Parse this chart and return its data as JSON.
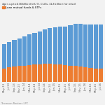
{
  "title": "dges up to $430 billion for U.S. CLOs, $112 billion for retail",
  "source": "Thomson Reuters LPC",
  "legend_label": "Loan mutual funds & ETFs",
  "bar_color_blue": "#5b9bd5",
  "bar_color_orange": "#ed7d31",
  "legend_color_orange": "#ed7d31",
  "background_color": "#f2f2f2",
  "plot_bg_color": "#f2f2f2",
  "x_labels": [
    "May-13",
    "Jul-13",
    "Sep-13",
    "Nov-13",
    "Jan-14",
    "Mar-14",
    "May-14",
    "Jul-14",
    "Sep-14",
    "Nov-14",
    "Jan-15",
    "Mar-15",
    "May-15",
    "Jul-15",
    "Sep-15",
    "Nov-15",
    "Jan-16",
    "Mar-16",
    "May-16",
    "Jul-16"
  ],
  "blue_values": [
    50,
    53,
    55,
    57,
    60,
    63,
    66,
    68,
    71,
    74,
    76,
    78,
    80,
    84,
    87,
    88,
    89,
    90,
    91,
    92
  ],
  "orange_values": [
    28,
    30,
    32,
    33,
    34,
    35,
    36,
    37,
    38,
    38,
    37,
    36,
    35,
    34,
    33,
    32,
    30,
    29,
    28,
    27
  ]
}
